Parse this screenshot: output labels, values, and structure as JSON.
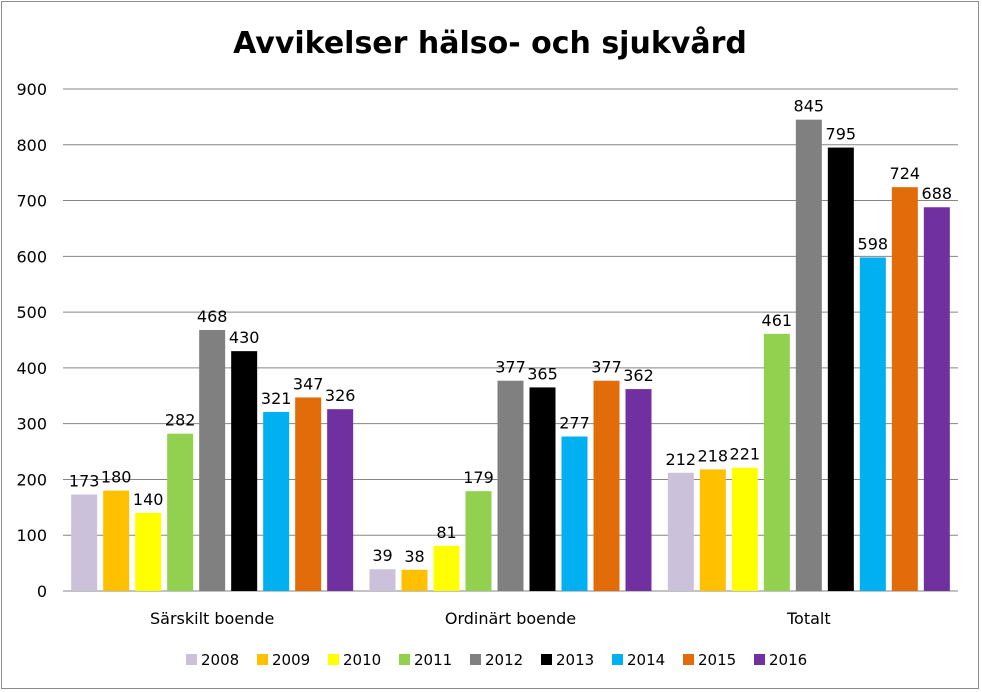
{
  "chart_data": {
    "type": "bar",
    "title": "Avvikelser hälso- och sjukvård",
    "categories": [
      "Särskilt boende",
      "Ordinärt boende",
      "Totalt"
    ],
    "ylim": [
      0,
      900
    ],
    "yticks": [
      0,
      100,
      200,
      300,
      400,
      500,
      600,
      700,
      800,
      900
    ],
    "grid": true,
    "legend_position": "bottom",
    "series": [
      {
        "name": "2008",
        "color": "#ccc1da",
        "values": [
          173,
          39,
          212
        ]
      },
      {
        "name": "2009",
        "color": "#ffc000",
        "values": [
          180,
          38,
          218
        ]
      },
      {
        "name": "2010",
        "color": "#ffff00",
        "values": [
          140,
          81,
          221
        ]
      },
      {
        "name": "2011",
        "color": "#92d050",
        "values": [
          282,
          179,
          461
        ]
      },
      {
        "name": "2012",
        "color": "#808080",
        "values": [
          468,
          377,
          845
        ]
      },
      {
        "name": "2013",
        "color": "#000000",
        "values": [
          430,
          365,
          795
        ]
      },
      {
        "name": "2014",
        "color": "#00b0f0",
        "values": [
          321,
          277,
          598
        ]
      },
      {
        "name": "2015",
        "color": "#e36c0a",
        "values": [
          347,
          377,
          724
        ]
      },
      {
        "name": "2016",
        "color": "#7030a0",
        "values": [
          326,
          362,
          688
        ]
      }
    ]
  }
}
